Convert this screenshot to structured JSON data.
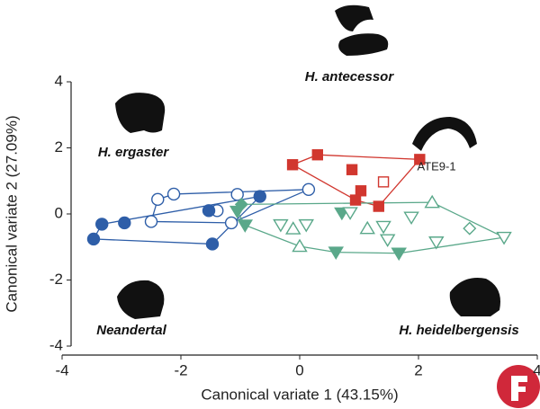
{
  "chart_data": {
    "type": "scatter",
    "xlabel": "Canonical variate 1 (43.15%)",
    "ylabel": "Canonical variate 2 (27.09%)",
    "xlim": [
      -4,
      4
    ],
    "xticks": [
      -4,
      -2,
      0,
      2,
      4
    ],
    "ylim": [
      -4,
      4
    ],
    "yticks": [
      -4,
      -2,
      0,
      2,
      4
    ],
    "series": [
      {
        "name": "H. ergaster",
        "color": "#2e5ea8",
        "marker": "circle-open",
        "hull": true,
        "x": [
          0.15,
          -1.05,
          -2.12,
          -2.39,
          -1.39,
          -2.5,
          -1.15
        ],
        "y": [
          0.74,
          0.59,
          0.6,
          0.44,
          0.1,
          -0.23,
          -0.27
        ]
      },
      {
        "name": "Neandertal",
        "color": "#2e5ea8",
        "marker": "circle",
        "hull": true,
        "x": [
          -0.67,
          -1.53,
          -2.95,
          -3.33,
          -3.47,
          -1.47
        ],
        "y": [
          0.53,
          0.1,
          -0.27,
          -0.31,
          -0.76,
          -0.91
        ]
      },
      {
        "name": "H. antecessor",
        "color": "#d1372f",
        "marker": "square",
        "hull": true,
        "x": [
          0.3,
          -0.12,
          2.02,
          0.88,
          1.03,
          0.94,
          1.33
        ],
        "y": [
          1.79,
          1.49,
          1.65,
          1.34,
          0.7,
          0.42,
          0.23
        ]
      },
      {
        "name": "ATE9-1",
        "color": "#d1372f",
        "marker": "square-open",
        "hull": false,
        "x": [
          1.41
        ],
        "y": [
          0.97
        ]
      },
      {
        "name": "H. heidelbergensis",
        "color": "#5aa88a",
        "hull": true,
        "markers": [
          "diamond",
          "triangle-down",
          "triangle-down",
          "triangle-down",
          "triangle-down",
          "triangle-down",
          "triangle-up-open",
          "triangle-up-open",
          "triangle-up-open",
          "triangle-up-open",
          "triangle-down-open",
          "triangle-down-open",
          "triangle-down-open",
          "triangle-down-open",
          "triangle-down-open",
          "triangle-down-open",
          "triangle-down-open",
          "triangle-down-open",
          "diamond-open"
        ],
        "x": [
          -0.98,
          -1.05,
          -0.92,
          0.61,
          1.67,
          0.71,
          2.23,
          0.0,
          1.14,
          -0.11,
          0.85,
          3.44,
          -0.32,
          0.11,
          1.88,
          1.41,
          1.48,
          2.3,
          2.86
        ],
        "y": [
          0.29,
          0.08,
          -0.34,
          -1.16,
          -1.19,
          0.03,
          0.35,
          -0.98,
          -0.44,
          -0.45,
          0.04,
          -0.71,
          -0.33,
          -0.33,
          -0.1,
          -0.38,
          -0.78,
          -0.85,
          -0.44
        ]
      }
    ]
  }
}
